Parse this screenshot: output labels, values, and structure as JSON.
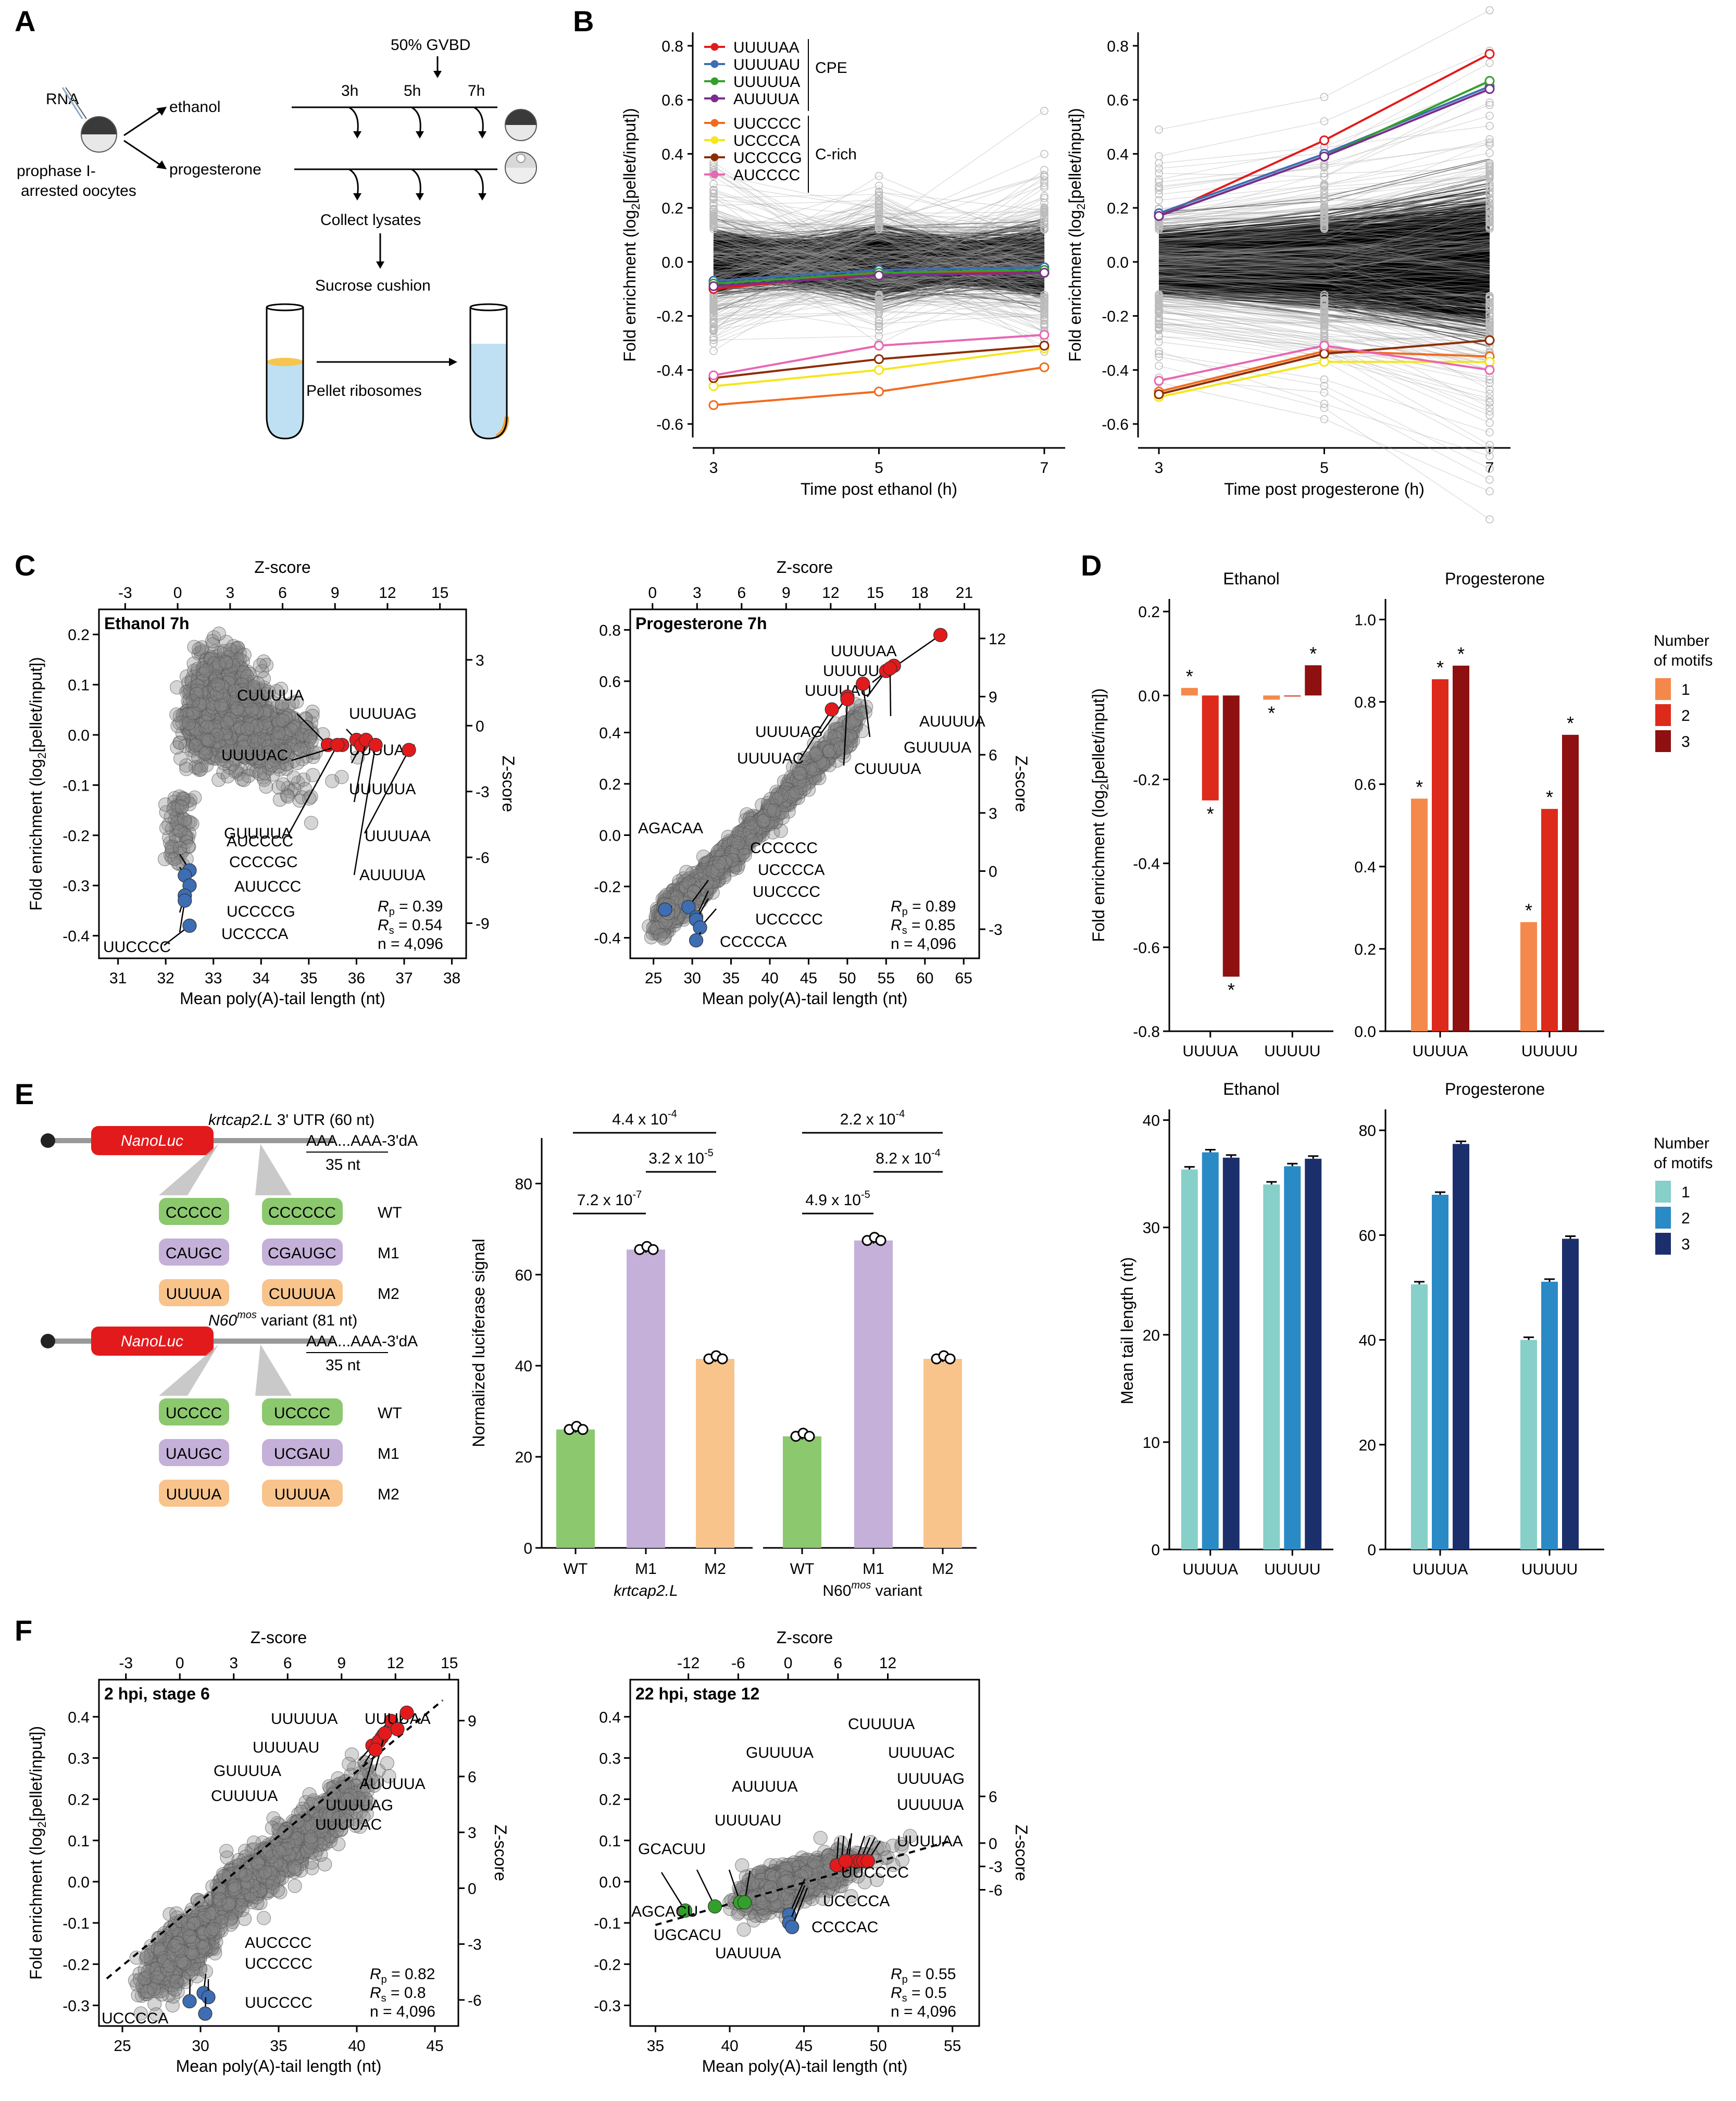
{
  "panelLabels": [
    "A",
    "B",
    "C",
    "D",
    "E",
    "F"
  ],
  "panelA": {
    "rna": "RNA",
    "oocytes": "prophase I-",
    "oocytes2": "arrested oocytes",
    "ethanol": "ethanol",
    "progesterone": "progesterone",
    "gvbd": "50% GVBD",
    "t3": "3h",
    "t5": "5h",
    "t7": "7h",
    "collect": "Collect lysates",
    "sucrose": "Sucrose cushion",
    "pellet": "Pellet ribosomes",
    "colors": {
      "egg_top": "#3a3a3a",
      "egg_bottom": "#e8e8e8",
      "tube_fill": "#bfe0f2",
      "band": "#f5c64f",
      "pellet": "#f0a030"
    }
  },
  "chart_data": [
    {
      "id": "B-left",
      "type": "line",
      "xlabel": "Time post ethanol (h)",
      "ylabel": "Fold enrichment (log2[pellet/input])",
      "x": [
        3,
        5,
        7
      ],
      "ylim": [
        -0.65,
        0.85
      ],
      "yticks": [
        -0.6,
        -0.4,
        -0.2,
        0.0,
        0.2,
        0.4,
        0.6,
        0.8
      ],
      "series": [
        {
          "name": "UUUUAA",
          "color": "#e31a1c",
          "values": [
            -0.1,
            -0.04,
            -0.04
          ]
        },
        {
          "name": "UUUUAU",
          "color": "#3d6db3",
          "values": [
            -0.07,
            -0.03,
            -0.02
          ]
        },
        {
          "name": "UUUUUA",
          "color": "#33a02c",
          "values": [
            -0.08,
            -0.04,
            -0.03
          ]
        },
        {
          "name": "AUUUUA",
          "color": "#7b2d8e",
          "values": [
            -0.09,
            -0.05,
            -0.04
          ]
        },
        {
          "name": "UUCCCC",
          "color": "#f26b1d",
          "values": [
            -0.53,
            -0.48,
            -0.39
          ]
        },
        {
          "name": "UCCCCA",
          "color": "#f5e61d",
          "values": [
            -0.46,
            -0.4,
            -0.32
          ]
        },
        {
          "name": "UCCCCG",
          "color": "#8c2d04",
          "values": [
            -0.43,
            -0.36,
            -0.31
          ]
        },
        {
          "name": "AUCCCC",
          "color": "#e767b3",
          "values": [
            -0.42,
            -0.31,
            -0.27
          ]
        }
      ],
      "legendGroups": [
        {
          "label": "CPE",
          "members": [
            0,
            1,
            2,
            3
          ]
        },
        {
          "label": "C-rich",
          "members": [
            4,
            5,
            6,
            7
          ]
        }
      ]
    },
    {
      "id": "B-right",
      "type": "line",
      "xlabel": "Time post progesterone (h)",
      "x": [
        3,
        5,
        7
      ],
      "ylim": [
        -0.65,
        0.85
      ],
      "yticks": [
        -0.6,
        -0.4,
        -0.2,
        0.0,
        0.2,
        0.4,
        0.6,
        0.8
      ],
      "series": [
        {
          "name": "UUUUAA",
          "color": "#e31a1c",
          "values": [
            0.17,
            0.45,
            0.77
          ]
        },
        {
          "name": "UUUUAU",
          "color": "#3d6db3",
          "values": [
            0.18,
            0.4,
            0.65
          ]
        },
        {
          "name": "UUUUUA",
          "color": "#33a02c",
          "values": [
            0.17,
            0.39,
            0.67
          ]
        },
        {
          "name": "AUUUUA",
          "color": "#7b2d8e",
          "values": [
            0.17,
            0.39,
            0.64
          ]
        },
        {
          "name": "UUCCCC",
          "color": "#f26b1d",
          "values": [
            -0.48,
            -0.33,
            -0.35
          ]
        },
        {
          "name": "UCCCCA",
          "color": "#f5e61d",
          "values": [
            -0.5,
            -0.37,
            -0.37
          ]
        },
        {
          "name": "UCCCCG",
          "color": "#8c2d04",
          "values": [
            -0.49,
            -0.34,
            -0.29
          ]
        },
        {
          "name": "AUCCCC",
          "color": "#e767b3",
          "values": [
            -0.44,
            -0.31,
            -0.4
          ]
        }
      ]
    }
  ],
  "panelC": {
    "left": {
      "title": "Ethanol 7h",
      "xlabel": "Mean poly(A)-tail length (nt)",
      "ylabel": "Fold enrichment (log2[pellet/input])",
      "topLabel": "Z-score",
      "rightLabel": "Z-score",
      "xticks": [
        "31",
        "32",
        "33",
        "34",
        "35",
        "36",
        "37",
        "38"
      ],
      "yticks": [
        "-0.4",
        "-0.3",
        "-0.2",
        "-0.1",
        "0.0",
        "0.1",
        "0.2"
      ],
      "topTicks": [
        "-3",
        "0",
        "3",
        "6",
        "9",
        "12",
        "15"
      ],
      "rightTicks": [
        "3",
        "0",
        "-3",
        "-6",
        "-9"
      ],
      "stats": {
        "rp": "= 0.39",
        "rs": "= 0.54",
        "n": "n = 4,096"
      },
      "red": [
        {
          "label": "CUUUUA",
          "x": 35.4,
          "y": -0.02
        },
        {
          "label": "UUUUAC",
          "x": 35.7,
          "y": -0.02
        },
        {
          "label": "UUUUAG",
          "x": 36.0,
          "y": -0.01
        },
        {
          "label": "UUUUAU",
          "x": 36.1,
          "y": -0.02
        },
        {
          "label": "UUUUUA",
          "x": 36.2,
          "y": -0.01
        },
        {
          "label": "GUUUUA",
          "x": 35.6,
          "y": -0.02
        },
        {
          "label": "AUUUUA",
          "x": 36.4,
          "y": -0.02
        },
        {
          "label": "UUUUAA",
          "x": 37.1,
          "y": -0.03
        }
      ],
      "blue": [
        {
          "label": "AUCCCC",
          "x": 32.5,
          "y": -0.27
        },
        {
          "label": "CCCCGC",
          "x": 32.4,
          "y": -0.28
        },
        {
          "label": "AUUCCC",
          "x": 32.5,
          "y": -0.3
        },
        {
          "label": "UCCCCG",
          "x": 32.4,
          "y": -0.32
        },
        {
          "label": "UCCCCA",
          "x": 32.4,
          "y": -0.33
        },
        {
          "label": "UUCCCC",
          "x": 32.5,
          "y": -0.38
        }
      ]
    },
    "right": {
      "title": "Progesterone 7h",
      "xlabel": "Mean poly(A)-tail length (nt)",
      "topLabel": "Z-score",
      "rightLabel": "Z-score",
      "xticks": [
        "25",
        "30",
        "35",
        "40",
        "45",
        "50",
        "55",
        "60",
        "65"
      ],
      "yticks": [
        "-0.4",
        "-0.2",
        "0.0",
        "0.2",
        "0.4",
        "0.6",
        "0.8"
      ],
      "topTicks": [
        "0",
        "3",
        "6",
        "9",
        "12",
        "15",
        "18",
        "21"
      ],
      "rightTicks": [
        "12",
        "9",
        "6",
        "3",
        "0",
        "-3"
      ],
      "stats": {
        "rp": "= 0.89",
        "rs": "= 0.85",
        "n": "n = 4,096"
      },
      "red": [
        {
          "label": "UUUUAA",
          "x": 62,
          "y": 0.78
        },
        {
          "label": "UUUUUA",
          "x": 56,
          "y": 0.66
        },
        {
          "label": "UUUUAU",
          "x": 55,
          "y": 0.64
        },
        {
          "label": "AUUUUA",
          "x": 55.5,
          "y": 0.65
        },
        {
          "label": "UUUUAG",
          "x": 50,
          "y": 0.54
        },
        {
          "label": "GUUUUA",
          "x": 52,
          "y": 0.59
        },
        {
          "label": "UUUUAC",
          "x": 48,
          "y": 0.49
        },
        {
          "label": "CUUUUA",
          "x": 50,
          "y": 0.53
        }
      ],
      "blue": [
        {
          "label": "AGACAA",
          "x": 26.5,
          "y": -0.29
        },
        {
          "label": "CCCCCC",
          "x": 29.5,
          "y": -0.28
        },
        {
          "label": "UCCCCA",
          "x": 30.5,
          "y": -0.32
        },
        {
          "label": "UUCCCC",
          "x": 30.5,
          "y": -0.33
        },
        {
          "label": "UCCCCC",
          "x": 31,
          "y": -0.36
        },
        {
          "label": "CCCCCA",
          "x": 30.5,
          "y": -0.41
        }
      ]
    }
  },
  "panelD": {
    "ylabel": "Fold enrichment (log2[pellet/input])",
    "ylabel2": "Mean tail length (nt)",
    "ethanol": "Ethanol",
    "progesterone": "Progesterone",
    "cats": [
      "UUUUA",
      "UUUUU"
    ],
    "legendTitle1": "Number",
    "legendTitle2": "of motifs",
    "legend": [
      "1",
      "2",
      "3"
    ],
    "colorsTop": [
      "#f4894b",
      "#dd2a1b",
      "#8e1010"
    ],
    "colorsBottom": [
      "#87cfc9",
      "#2a8ac6",
      "#1c2f6d"
    ],
    "fe_eth": [
      [
        0.018,
        -0.25,
        -0.67
      ],
      [
        -0.01,
        0.0,
        0.072
      ]
    ],
    "fe_prog": [
      [
        0.565,
        0.855,
        0.888
      ],
      [
        0.265,
        0.54,
        0.72
      ]
    ],
    "tail_eth": [
      [
        35.4,
        37.0,
        36.5
      ],
      [
        34.0,
        35.7,
        36.4
      ]
    ],
    "tail_prog": [
      [
        50.6,
        67.7,
        77.4
      ],
      [
        40.0,
        51.1,
        59.3
      ]
    ],
    "yticksTop1": [
      "0.2",
      "0.0",
      "-0.2",
      "-0.4",
      "-0.6",
      "-0.8"
    ],
    "yticksTop2": [
      "1.0",
      "0.8",
      "0.6",
      "0.4",
      "0.2",
      "0.0"
    ],
    "yticksBot1": [
      "40",
      "30",
      "20",
      "10",
      "0"
    ],
    "yticksBot2": [
      "80",
      "60",
      "40",
      "20",
      "0"
    ],
    "star": "*"
  },
  "panelE": {
    "reporter1": {
      "nano": "NanoLuc",
      "utr": "krtcap2.L",
      "utr2": " 3' UTR (60 nt)",
      "tail": "AAA...AAA-3'dA",
      "nt": "35 nt",
      "rows": [
        [
          "CCCCC",
          "CCCCCC",
          "WT"
        ],
        [
          "CAUGC",
          "CGAUGC",
          "M1"
        ],
        [
          "UUUUA",
          "CUUUUA",
          "M2"
        ]
      ]
    },
    "reporter2": {
      "nano": "NanoLuc",
      "utr": "N60",
      "sup": "mos",
      "utr2": " variant (81 nt)",
      "tail": "AAA...AAA-3'dA",
      "nt": "35 nt",
      "rows": [
        [
          "UCCCC",
          "UCCCC",
          "WT"
        ],
        [
          "UAUGC",
          "UCGAU",
          "M1"
        ],
        [
          "UUUUA",
          "UUUUA",
          "M2"
        ]
      ]
    },
    "boxColors": [
      "#8cc86e",
      "#c4b0d8",
      "#f8c48c"
    ],
    "bar": {
      "ylabel": "Normalized luciferase signal",
      "yticks": [
        "0",
        "20",
        "40",
        "60",
        "80"
      ],
      "cats": [
        "WT",
        "M1",
        "M2"
      ],
      "group1": "krtcap2.L",
      "group2": "N60",
      "group2sup": "mos",
      "group2b": " variant",
      "values1": [
        26,
        65.5,
        41.5
      ],
      "values2": [
        24.5,
        67.5,
        41.5
      ],
      "p1": [
        "4.4 x 10",
        "-4"
      ],
      "p2": [
        "3.2 x 10",
        "-5"
      ],
      "p3": [
        "7.2 x 10",
        "-7"
      ],
      "p4": [
        "2.2 x 10",
        "-4"
      ],
      "p5": [
        "8.2 x 10",
        "-4"
      ],
      "p6": [
        "4.9 x 10",
        "-5"
      ]
    }
  },
  "panelF": {
    "left": {
      "title": "2 hpi, stage 6",
      "xlabel": "Mean poly(A)-tail length (nt)",
      "ylabel": "Fold enrichment (log2[pellet/input])",
      "topLabel": "Z-score",
      "rightLabel": "Z-score",
      "xticks": [
        "25",
        "30",
        "35",
        "40",
        "45"
      ],
      "yticks": [
        "-0.3",
        "-0.2",
        "-0.1",
        "0.0",
        "0.1",
        "0.2",
        "0.3",
        "0.4"
      ],
      "topTicks": [
        "-3",
        "0",
        "3",
        "6",
        "9",
        "12",
        "15"
      ],
      "rightTicks": [
        "9",
        "6",
        "3",
        "0",
        "-3",
        "-6"
      ],
      "stats": {
        "rp": "= 0.82",
        "rs": "= 0.8",
        "n": "n = 4,096"
      },
      "red": [
        {
          "label": "UUUUUA",
          "x": 42.2,
          "y": 0.39
        },
        {
          "label": "UUUUAA",
          "x": 43.2,
          "y": 0.41
        },
        {
          "label": "UUUUAU",
          "x": 42.6,
          "y": 0.37
        },
        {
          "label": "GUUUUA",
          "x": 41.6,
          "y": 0.35
        },
        {
          "label": "CUUUUA",
          "x": 41.0,
          "y": 0.33
        },
        {
          "label": "AUUUUA",
          "x": 41.4,
          "y": 0.34
        },
        {
          "label": "UUUUAG",
          "x": 41.8,
          "y": 0.36
        },
        {
          "label": "UUUUAC",
          "x": 41.2,
          "y": 0.32
        }
      ],
      "blue": [
        {
          "label": "AUCCCC",
          "x": 30.2,
          "y": -0.27
        },
        {
          "label": "UCCCCC",
          "x": 30.5,
          "y": -0.28
        },
        {
          "label": "UCCCCA",
          "x": 29.3,
          "y": -0.29
        },
        {
          "label": "UUCCCC",
          "x": 30.3,
          "y": -0.32
        }
      ]
    },
    "right": {
      "title": "22 hpi, stage 12",
      "xlabel": "Mean poly(A)-tail length (nt)",
      "topLabel": "Z-score",
      "rightLabel": "Z-score",
      "xticks": [
        "35",
        "40",
        "45",
        "50",
        "55"
      ],
      "yticks": [
        "-0.3",
        "-0.2",
        "-0.1",
        "0.0",
        "0.1",
        "0.2",
        "0.3",
        "0.4"
      ],
      "topTicks": [
        "-12",
        "-6",
        "0",
        "6",
        "12"
      ],
      "rightTicks": [
        "6",
        "0",
        "-3",
        "-6"
      ],
      "stats": {
        "rp": "= 0.55",
        "rs": "= 0.5",
        "n": "n = 4,096"
      },
      "red": [
        {
          "label": "CUUUUA",
          "x": 48.0,
          "y": 0.05
        },
        {
          "label": "GUUUUA",
          "x": 47.5,
          "y": 0.04
        },
        {
          "label": "UUUUAC",
          "x": 48.5,
          "y": 0.05
        },
        {
          "label": "AUUUUA",
          "x": 47.2,
          "y": 0.04
        },
        {
          "label": "UUUUAG",
          "x": 48.8,
          "y": 0.05
        },
        {
          "label": "UUUUUA",
          "x": 49.0,
          "y": 0.05
        },
        {
          "label": "UUUUAU",
          "x": 47.8,
          "y": 0.05
        },
        {
          "label": "UUUUAA",
          "x": 49.3,
          "y": 0.05
        }
      ],
      "blue": [
        {
          "label": "UUCCCC",
          "x": 44.0,
          "y": -0.08
        },
        {
          "label": "UCCCCA",
          "x": 44.0,
          "y": -0.1
        },
        {
          "label": "CCCCAC",
          "x": 44.2,
          "y": -0.11
        }
      ],
      "green": [
        {
          "label": "GCACUU",
          "x": 37.0,
          "y": -0.07
        },
        {
          "label": "AGCACU",
          "x": 39.0,
          "y": -0.06
        },
        {
          "label": "UGCACU",
          "x": 40.7,
          "y": -0.05
        },
        {
          "label": "UAUUUA",
          "x": 41.0,
          "y": -0.05
        }
      ]
    }
  }
}
